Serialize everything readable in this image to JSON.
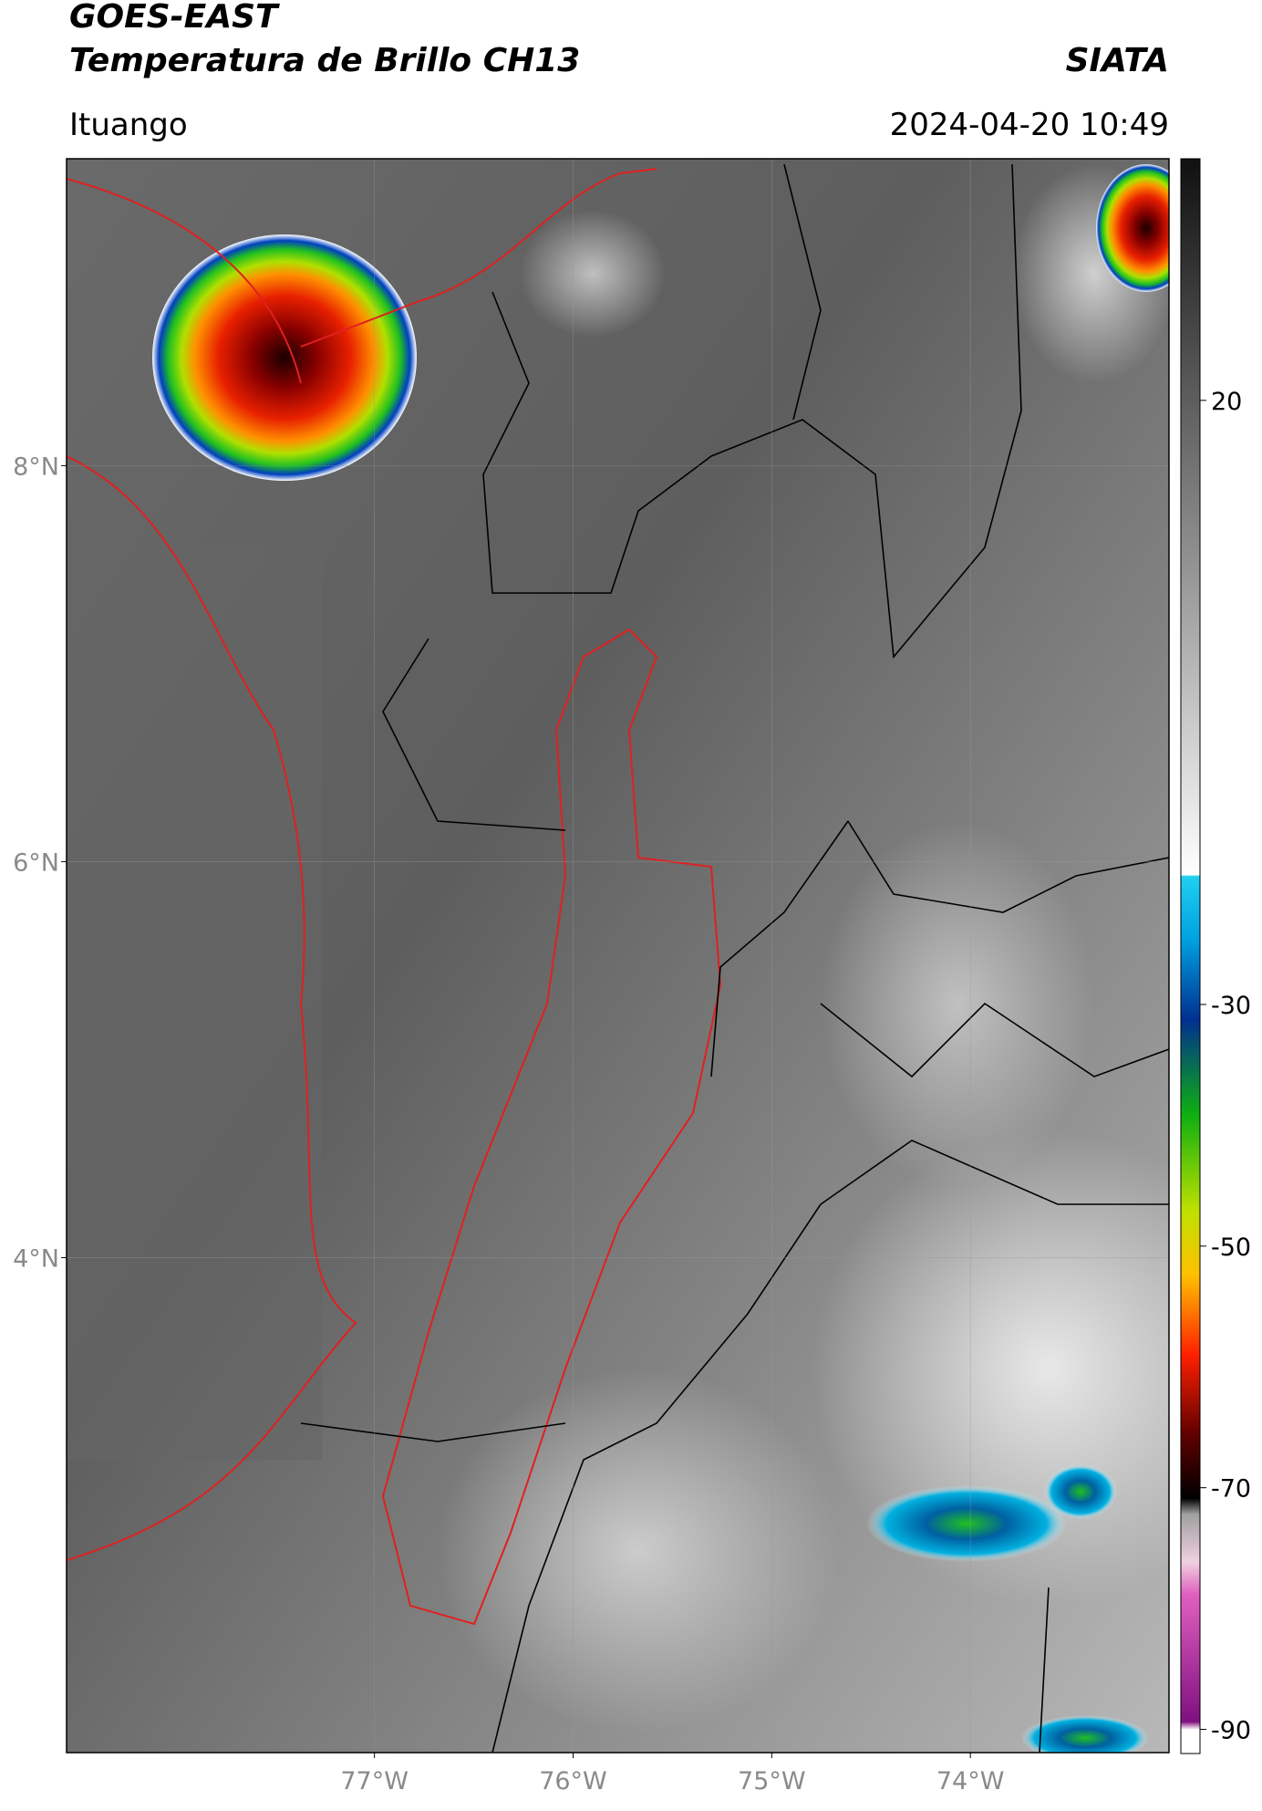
{
  "header": {
    "title": "GOES-EAST",
    "subtitle": "Temperatura de Brillo CH13",
    "source": "SIATA",
    "region": "Ituango",
    "datetime": "2024-04-20 10:49"
  },
  "map": {
    "lon_lim": [
      -78.55,
      -73.0
    ],
    "lat_lim": [
      1.5,
      9.55
    ],
    "lat_ticks": [
      {
        "value": 8,
        "label": "8°N"
      },
      {
        "value": 6,
        "label": "6°N"
      },
      {
        "value": 4,
        "label": "4°N"
      }
    ],
    "lon_ticks": [
      {
        "value": -77,
        "label": "77°W"
      },
      {
        "value": -76,
        "label": "76°W"
      },
      {
        "value": -75,
        "label": "75°W"
      },
      {
        "value": -74,
        "label": "74°W"
      }
    ]
  },
  "colorbar": {
    "lim": [
      -92,
      40
    ],
    "ticks": [
      20,
      -30,
      -50,
      -70,
      -90
    ]
  }
}
